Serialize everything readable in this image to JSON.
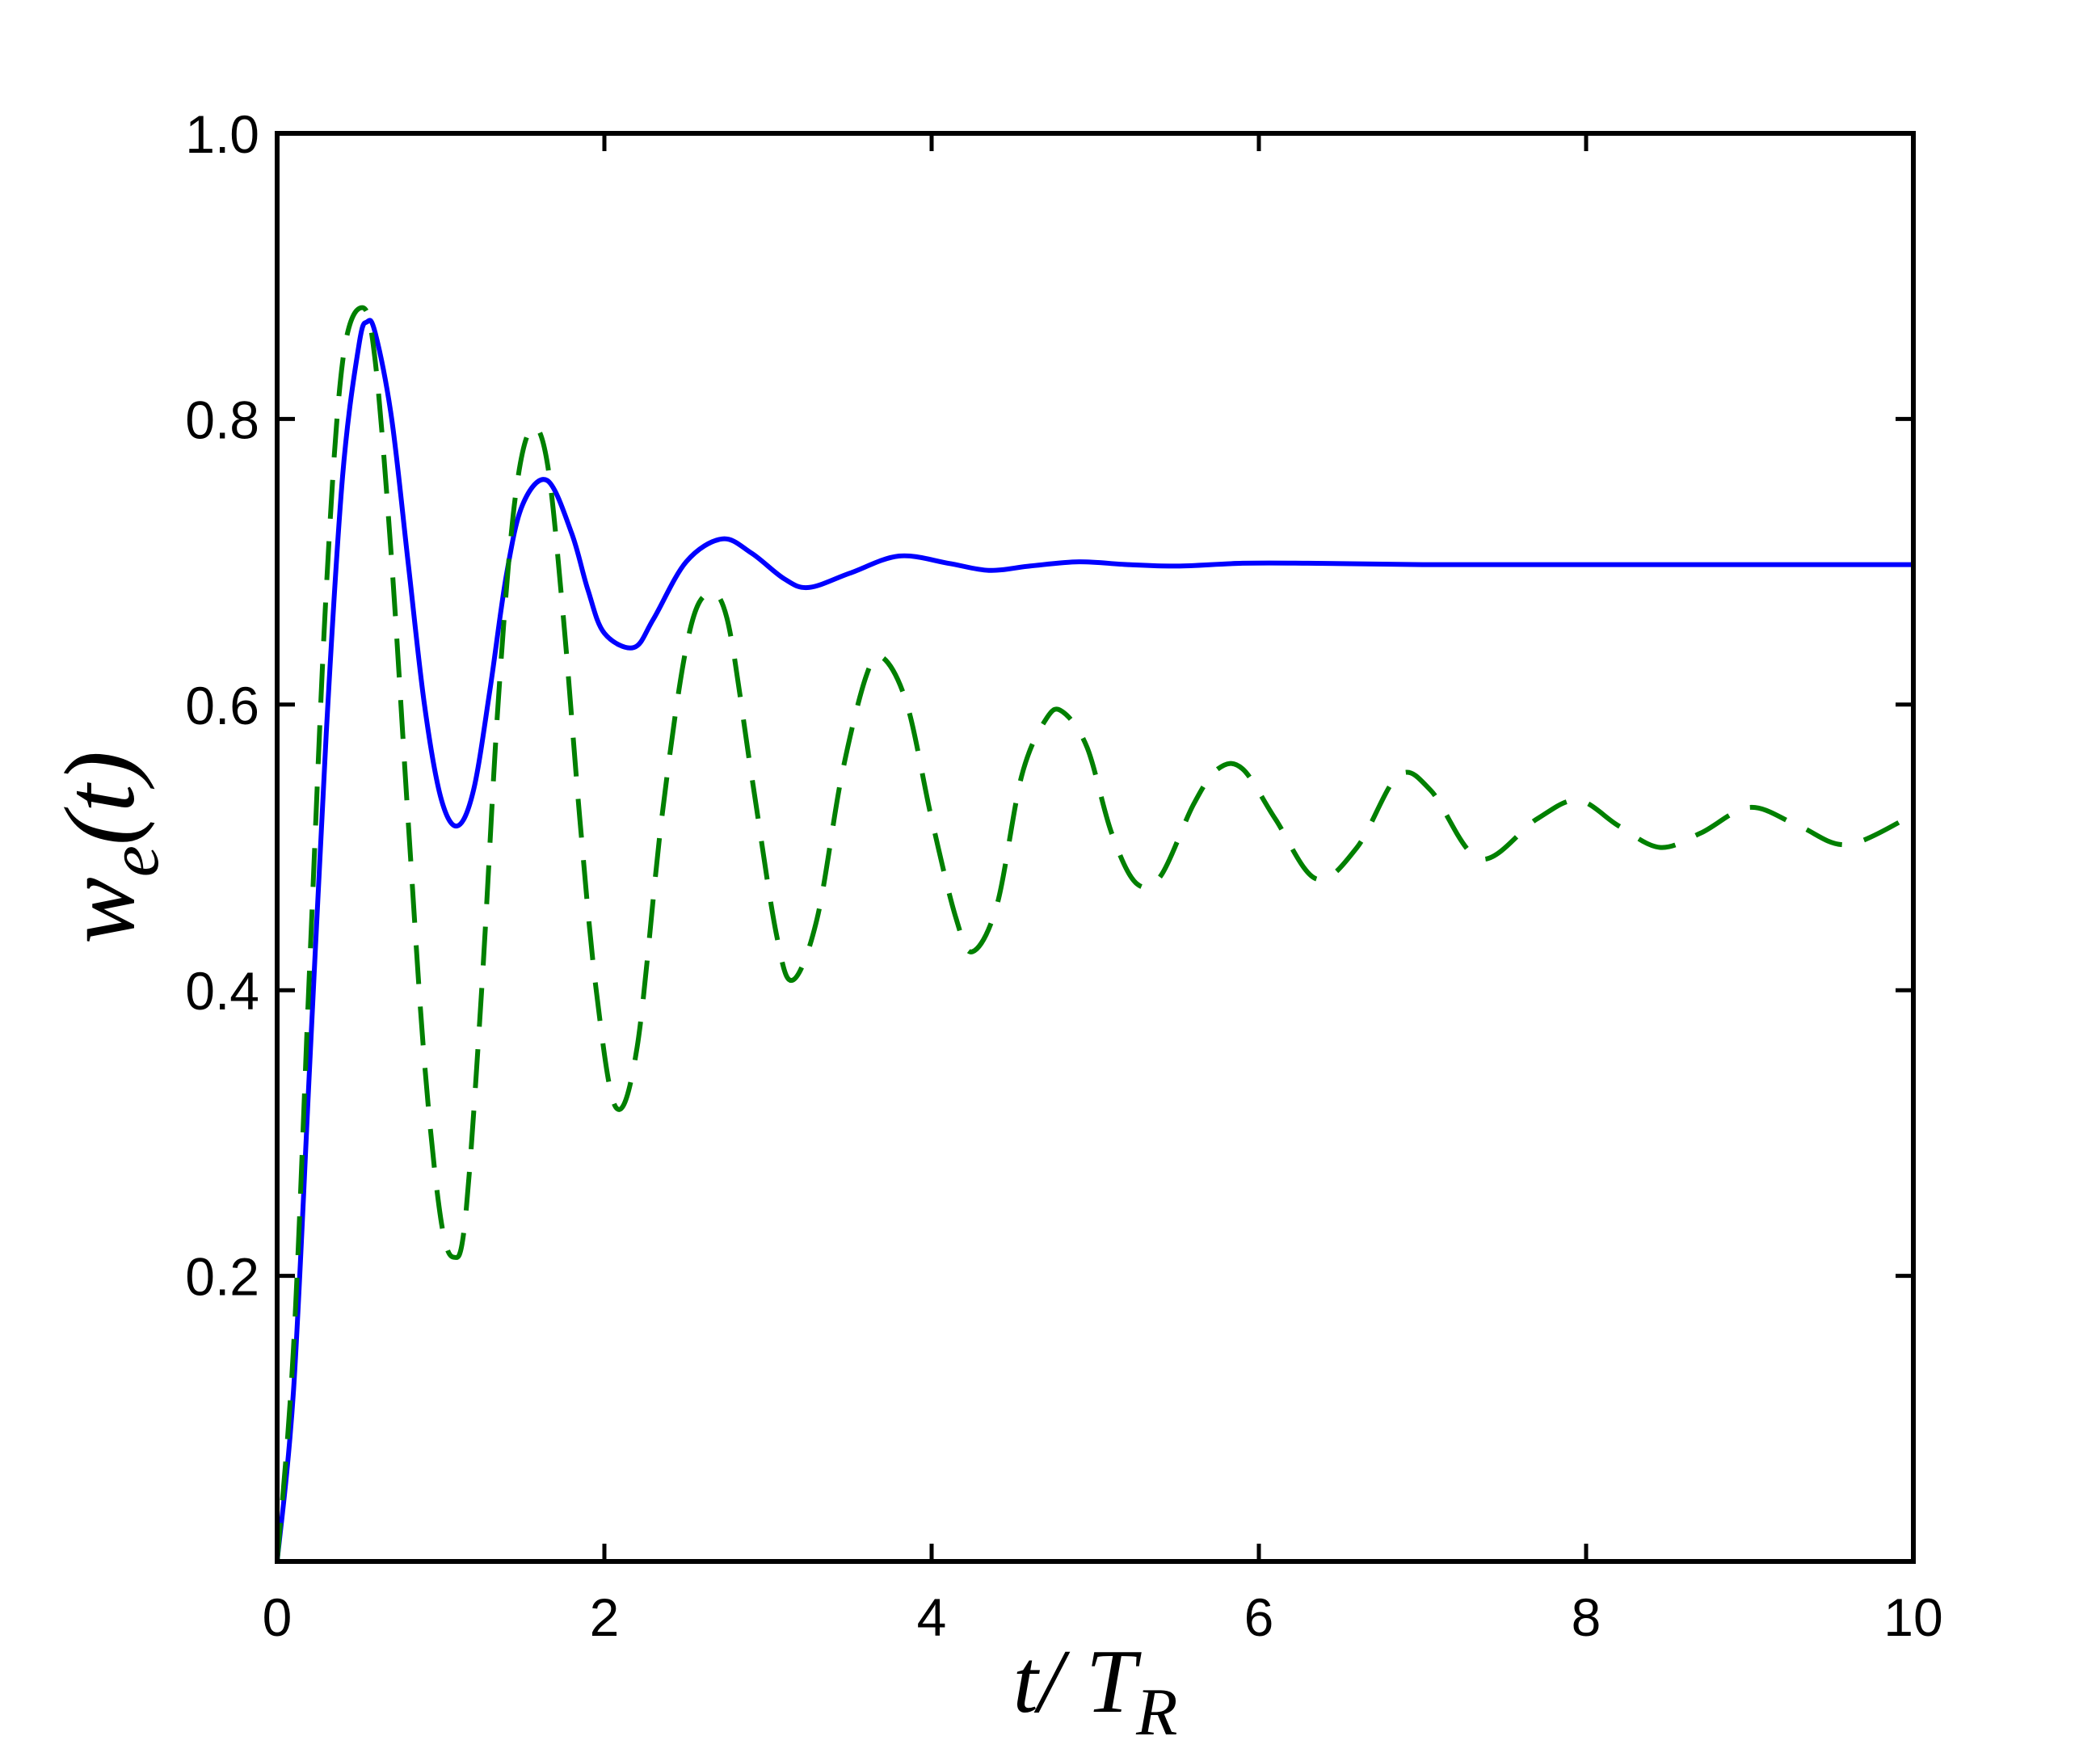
{
  "chart_data": {
    "type": "line",
    "xlabel": {
      "base": "t/ T",
      "subscript": "R"
    },
    "ylabel": {
      "base": "w",
      "subscript": "e",
      "suffix": "(t)"
    },
    "xlim": [
      0,
      10
    ],
    "ylim": [
      0,
      1.0
    ],
    "xticks": [
      0,
      2,
      4,
      6,
      8,
      10
    ],
    "xtick_labels": [
      "0",
      "2",
      "4",
      "6",
      "8",
      "10"
    ],
    "yticks": [
      0.2,
      0.4,
      0.6,
      0.8,
      1.0
    ],
    "ytick_labels": [
      "0.2",
      "0.4",
      "0.6",
      "0.8",
      "1.0"
    ],
    "grid": false,
    "series": [
      {
        "color": "#0000ff",
        "style": "solid",
        "x": [
          0,
          0.1,
          0.2,
          0.3,
          0.4,
          0.5,
          0.55,
          0.6,
          0.7,
          0.8,
          0.9,
          1.0,
          1.1,
          1.2,
          1.3,
          1.4,
          1.5,
          1.65,
          1.8,
          1.9,
          2.0,
          2.18,
          2.3,
          2.5,
          2.72,
          2.9,
          3.1,
          3.25,
          3.5,
          3.8,
          4.1,
          4.35,
          4.6,
          4.9,
          5.2,
          5.5,
          5.9,
          6.3,
          7,
          8,
          9,
          10
        ],
        "y": [
          0,
          0.12,
          0.35,
          0.58,
          0.76,
          0.852,
          0.868,
          0.86,
          0.8,
          0.7,
          0.6,
          0.535,
          0.515,
          0.54,
          0.61,
          0.69,
          0.74,
          0.757,
          0.72,
          0.68,
          0.65,
          0.64,
          0.66,
          0.7,
          0.716,
          0.706,
          0.688,
          0.682,
          0.692,
          0.704,
          0.699,
          0.694,
          0.697,
          0.7,
          0.698,
          0.697,
          0.699,
          0.699,
          0.698,
          0.698,
          0.698,
          0.698
        ]
      },
      {
        "color": "#008000",
        "style": "dashed",
        "x": [
          0,
          0.1,
          0.2,
          0.3,
          0.4,
          0.52,
          0.6,
          0.7,
          0.8,
          0.9,
          1.0,
          1.08,
          1.15,
          1.25,
          1.35,
          1.45,
          1.55,
          1.65,
          1.75,
          1.85,
          1.95,
          2.07,
          2.2,
          2.35,
          2.5,
          2.62,
          2.75,
          2.9,
          3.05,
          3.15,
          3.3,
          3.45,
          3.6,
          3.7,
          3.85,
          4.0,
          4.15,
          4.25,
          4.4,
          4.55,
          4.7,
          4.8,
          4.95,
          5.1,
          5.25,
          5.4,
          5.6,
          5.75,
          5.9,
          6.1,
          6.35,
          6.6,
          6.85,
          7.05,
          7.35,
          7.7,
          7.95,
          8.2,
          8.45,
          8.7,
          9.0,
          9.3,
          9.6,
          10.0
        ],
        "y": [
          0,
          0.15,
          0.42,
          0.68,
          0.84,
          0.878,
          0.84,
          0.7,
          0.52,
          0.35,
          0.24,
          0.213,
          0.24,
          0.4,
          0.6,
          0.74,
          0.793,
          0.77,
          0.66,
          0.52,
          0.4,
          0.318,
          0.36,
          0.52,
          0.64,
          0.677,
          0.66,
          0.55,
          0.44,
          0.407,
          0.45,
          0.55,
          0.62,
          0.633,
          0.6,
          0.52,
          0.45,
          0.427,
          0.46,
          0.55,
          0.59,
          0.595,
          0.57,
          0.51,
          0.475,
          0.48,
          0.53,
          0.555,
          0.555,
          0.52,
          0.478,
          0.5,
          0.55,
          0.54,
          0.492,
          0.52,
          0.533,
          0.515,
          0.5,
          0.51,
          0.528,
          0.515,
          0.502,
          0.523
        ]
      }
    ]
  }
}
